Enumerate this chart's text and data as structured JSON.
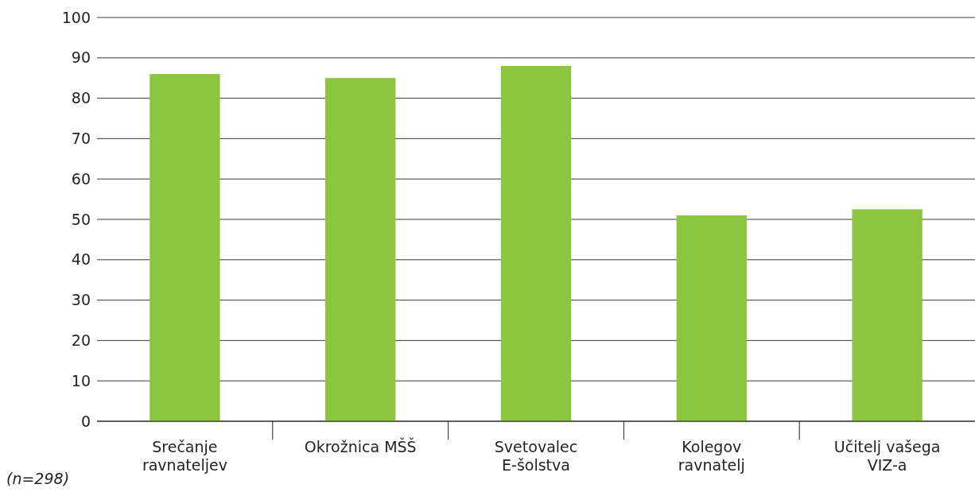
{
  "chart_data": {
    "type": "bar",
    "categories": [
      "Srečanje ravnateljev",
      "Okrožnica MŠŠ",
      "Svetovalec E-šolstva",
      "Kolegov ravnatelj",
      "Učitelj vašega VIZ-a"
    ],
    "values": [
      86,
      85,
      88,
      51,
      52.5
    ],
    "color": "#8cc63f",
    "ylim": [
      0,
      100
    ],
    "yticks": [
      0,
      10,
      20,
      30,
      40,
      50,
      60,
      70,
      80,
      90,
      100
    ],
    "grid": "y",
    "annotations": [
      "(n=298)"
    ]
  }
}
